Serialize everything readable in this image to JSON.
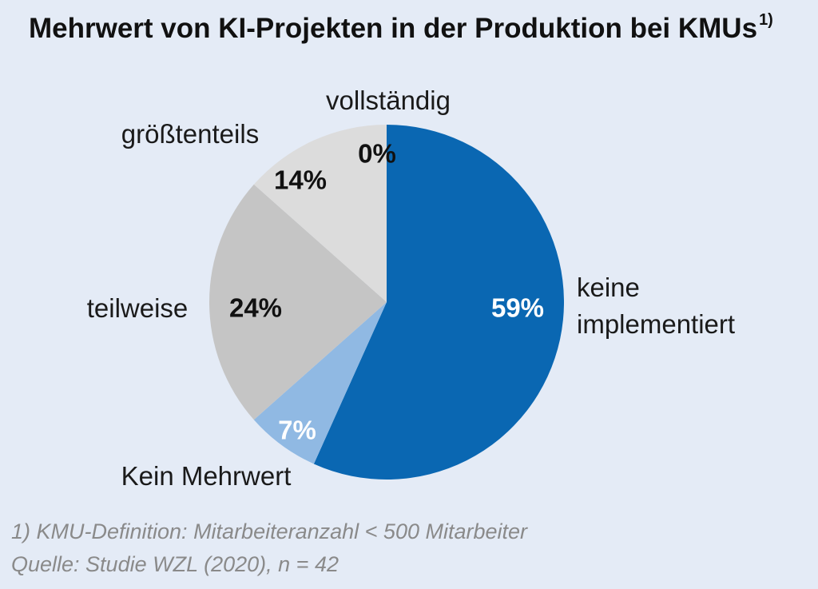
{
  "chart_data": {
    "type": "pie",
    "title": "Mehrwert von KI-Projekten in der Produktion bei KMUs",
    "title_superscript": "1)",
    "slices": [
      {
        "key": "keine-implementiert",
        "label_lines": [
          "keine",
          "implementiert"
        ],
        "value": 59,
        "value_label": "59%",
        "color": "#0a67b2",
        "text_color": "#ffffff"
      },
      {
        "key": "kein-mehrwert",
        "label_lines": [
          "Kein Mehrwert"
        ],
        "value": 7,
        "value_label": "7%",
        "color": "#90b9e3",
        "text_color": "#ffffff"
      },
      {
        "key": "teilweise",
        "label_lines": [
          "teilweise"
        ],
        "value": 24,
        "value_label": "24%",
        "color": "#c5c5c5",
        "text_color": "#111111"
      },
      {
        "key": "groesstenteils",
        "label_lines": [
          "größtenteils"
        ],
        "value": 14,
        "value_label": "14%",
        "color": "#dcdcdc",
        "text_color": "#111111"
      },
      {
        "key": "vollstaendig",
        "label_lines": [
          "vollständig"
        ],
        "value": 0,
        "value_label": "0%",
        "color": "#e8e8e8",
        "text_color": "#111111"
      }
    ]
  },
  "footnotes": {
    "line1": "1) KMU-Definition: Mitarbeiteranzahl < 500 Mitarbeiter",
    "line2": "Quelle: Studie WZL (2020), n = 42"
  }
}
